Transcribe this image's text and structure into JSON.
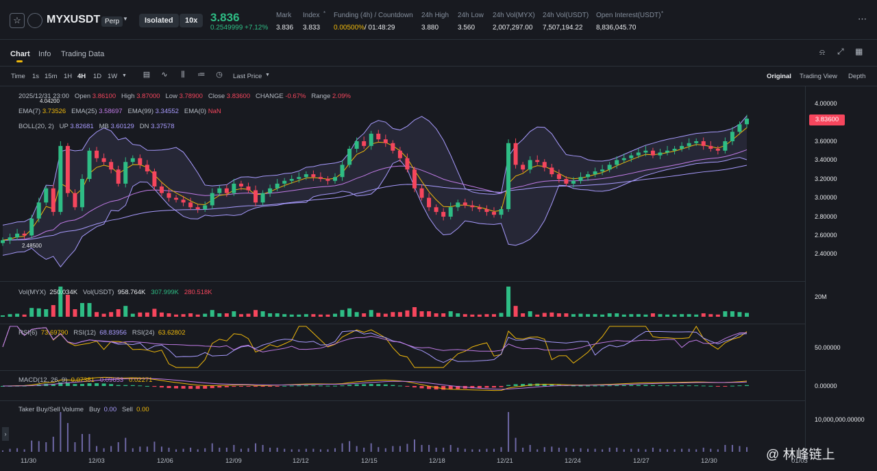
{
  "header": {
    "symbol": "MYXUSDT",
    "contract_type": "Perp",
    "margin_mode": "Isolated",
    "leverage": "10x",
    "last_price": "3.836",
    "price_change": "0.2549999 +7.12%",
    "stats": [
      {
        "label": "Mark",
        "value": "3.836"
      },
      {
        "label": "Index",
        "value": "3.833"
      },
      {
        "label": "Funding (4h) / Countdown",
        "value": "0.00500%",
        "value2": " / 01:48:29"
      },
      {
        "label": "24h High",
        "value": "3.880"
      },
      {
        "label": "24h Low",
        "value": "3.560"
      },
      {
        "label": "24h Vol(MYX)",
        "value": "2,007,297.00"
      },
      {
        "label": "24h Vol(USDT)",
        "value": "7,507,194.22"
      },
      {
        "label": "Open Interest(USDT)",
        "value": "8,836,045.70"
      }
    ]
  },
  "tabs": [
    "Chart",
    "Info",
    "Trading Data"
  ],
  "toolbar": {
    "intervals": [
      "Time",
      "1s",
      "15m",
      "1H",
      "4H",
      "1D",
      "1W"
    ],
    "price_type": "Last Price",
    "views": [
      "Original",
      "Trading View",
      "Depth"
    ]
  },
  "legend": {
    "ohlc": {
      "time": "2025/12/31 23:00",
      "open": "3.86100",
      "high": "3.87000",
      "low": "3.78900",
      "close": "3.83600",
      "change": "-0.67%",
      "range": "2.09%"
    },
    "ema": {
      "ema7": "3.73526",
      "ema25": "3.58697",
      "ema99": "3.34552",
      "ema0": "NaN"
    },
    "boll": {
      "label": "BOLL(20, 2)",
      "up": "3.82681",
      "mb": "3.60129",
      "dn": "3.37578"
    },
    "max_label": "4.04200",
    "min_label": "2.48500",
    "vol": {
      "label": "Vol(MYX)",
      "myx": "250.034K",
      "usdt_label": "Vol(USDT)",
      "usdt": "958.764K",
      "ma1": "307.999K",
      "ma2": "280.518K"
    },
    "rsi": {
      "rsi6_label": "RSI(6)",
      "rsi6": "73.69790",
      "rsi12_label": "RSI(12)",
      "rsi12": "68.83956",
      "rsi24_label": "RSI(24)",
      "rsi24": "63.62802"
    },
    "macd": {
      "label": "MACD(12, 26, 9)",
      "dif": "0.07381",
      "dea": "0.09653",
      "hist": "0.02271"
    },
    "taker": {
      "label": "Taker Buy/Sell Volume",
      "buy_label": "Buy",
      "buy": "0.00",
      "sell_label": "Sell",
      "sell": "0.00"
    }
  },
  "price_axis": [
    "4.00000",
    "3.80000",
    "3.60000",
    "3.40000",
    "3.20000",
    "3.00000",
    "2.80000",
    "2.60000",
    "2.40000"
  ],
  "current_price_tag": "3.83600",
  "vol_axis": "20M",
  "rsi_axis": "50.00000",
  "macd_axis": "0.00000",
  "taker_axis": "10,000,000.00000",
  "x_axis": [
    "11/30",
    "12/03",
    "12/06",
    "12/09",
    "12/12",
    "12/15",
    "12/18",
    "12/21",
    "12/24",
    "12/27",
    "12/30",
    "01/03"
  ],
  "watermark": "@ 林峰链上",
  "colors": {
    "up": "#2ebd85",
    "down": "#f6465d",
    "accent": "#f0b90b",
    "bg": "#181a20"
  },
  "chart_data": {
    "type": "candlestick",
    "interval": "4H",
    "x_range": [
      "11/30",
      "01/01"
    ],
    "ylim": [
      2.3,
      4.1
    ],
    "closes": [
      2.55,
      2.58,
      2.62,
      2.6,
      2.78,
      2.95,
      3.1,
      2.85,
      3.55,
      3.05,
      2.9,
      3.2,
      3.5,
      3.42,
      3.38,
      3.3,
      3.15,
      3.38,
      3.42,
      3.35,
      3.28,
      3.12,
      3.05,
      3.0,
      2.98,
      2.95,
      2.9,
      2.88,
      2.92,
      3.05,
      3.1,
      3.05,
      3.15,
      3.12,
      3.08,
      2.95,
      3.05,
      3.1,
      3.15,
      3.18,
      3.2,
      3.22,
      3.25,
      3.22,
      3.2,
      3.18,
      3.22,
      3.35,
      3.52,
      3.6,
      3.55,
      3.68,
      3.62,
      3.58,
      3.5,
      3.42,
      3.3,
      3.1,
      3.0,
      2.9,
      2.85,
      2.8,
      2.9,
      2.95,
      2.92,
      2.9,
      2.88,
      2.85,
      2.82,
      2.88,
      3.58,
      3.35,
      3.3,
      3.4,
      3.38,
      3.32,
      3.25,
      3.2,
      3.15,
      3.18,
      3.22,
      3.25,
      3.28,
      3.3,
      3.35,
      3.4,
      3.42,
      3.45,
      3.48,
      3.5,
      3.45,
      3.48,
      3.5,
      3.52,
      3.55,
      3.58,
      3.6,
      3.55,
      3.52,
      3.5,
      3.6,
      3.7,
      3.78,
      3.84
    ]
  }
}
